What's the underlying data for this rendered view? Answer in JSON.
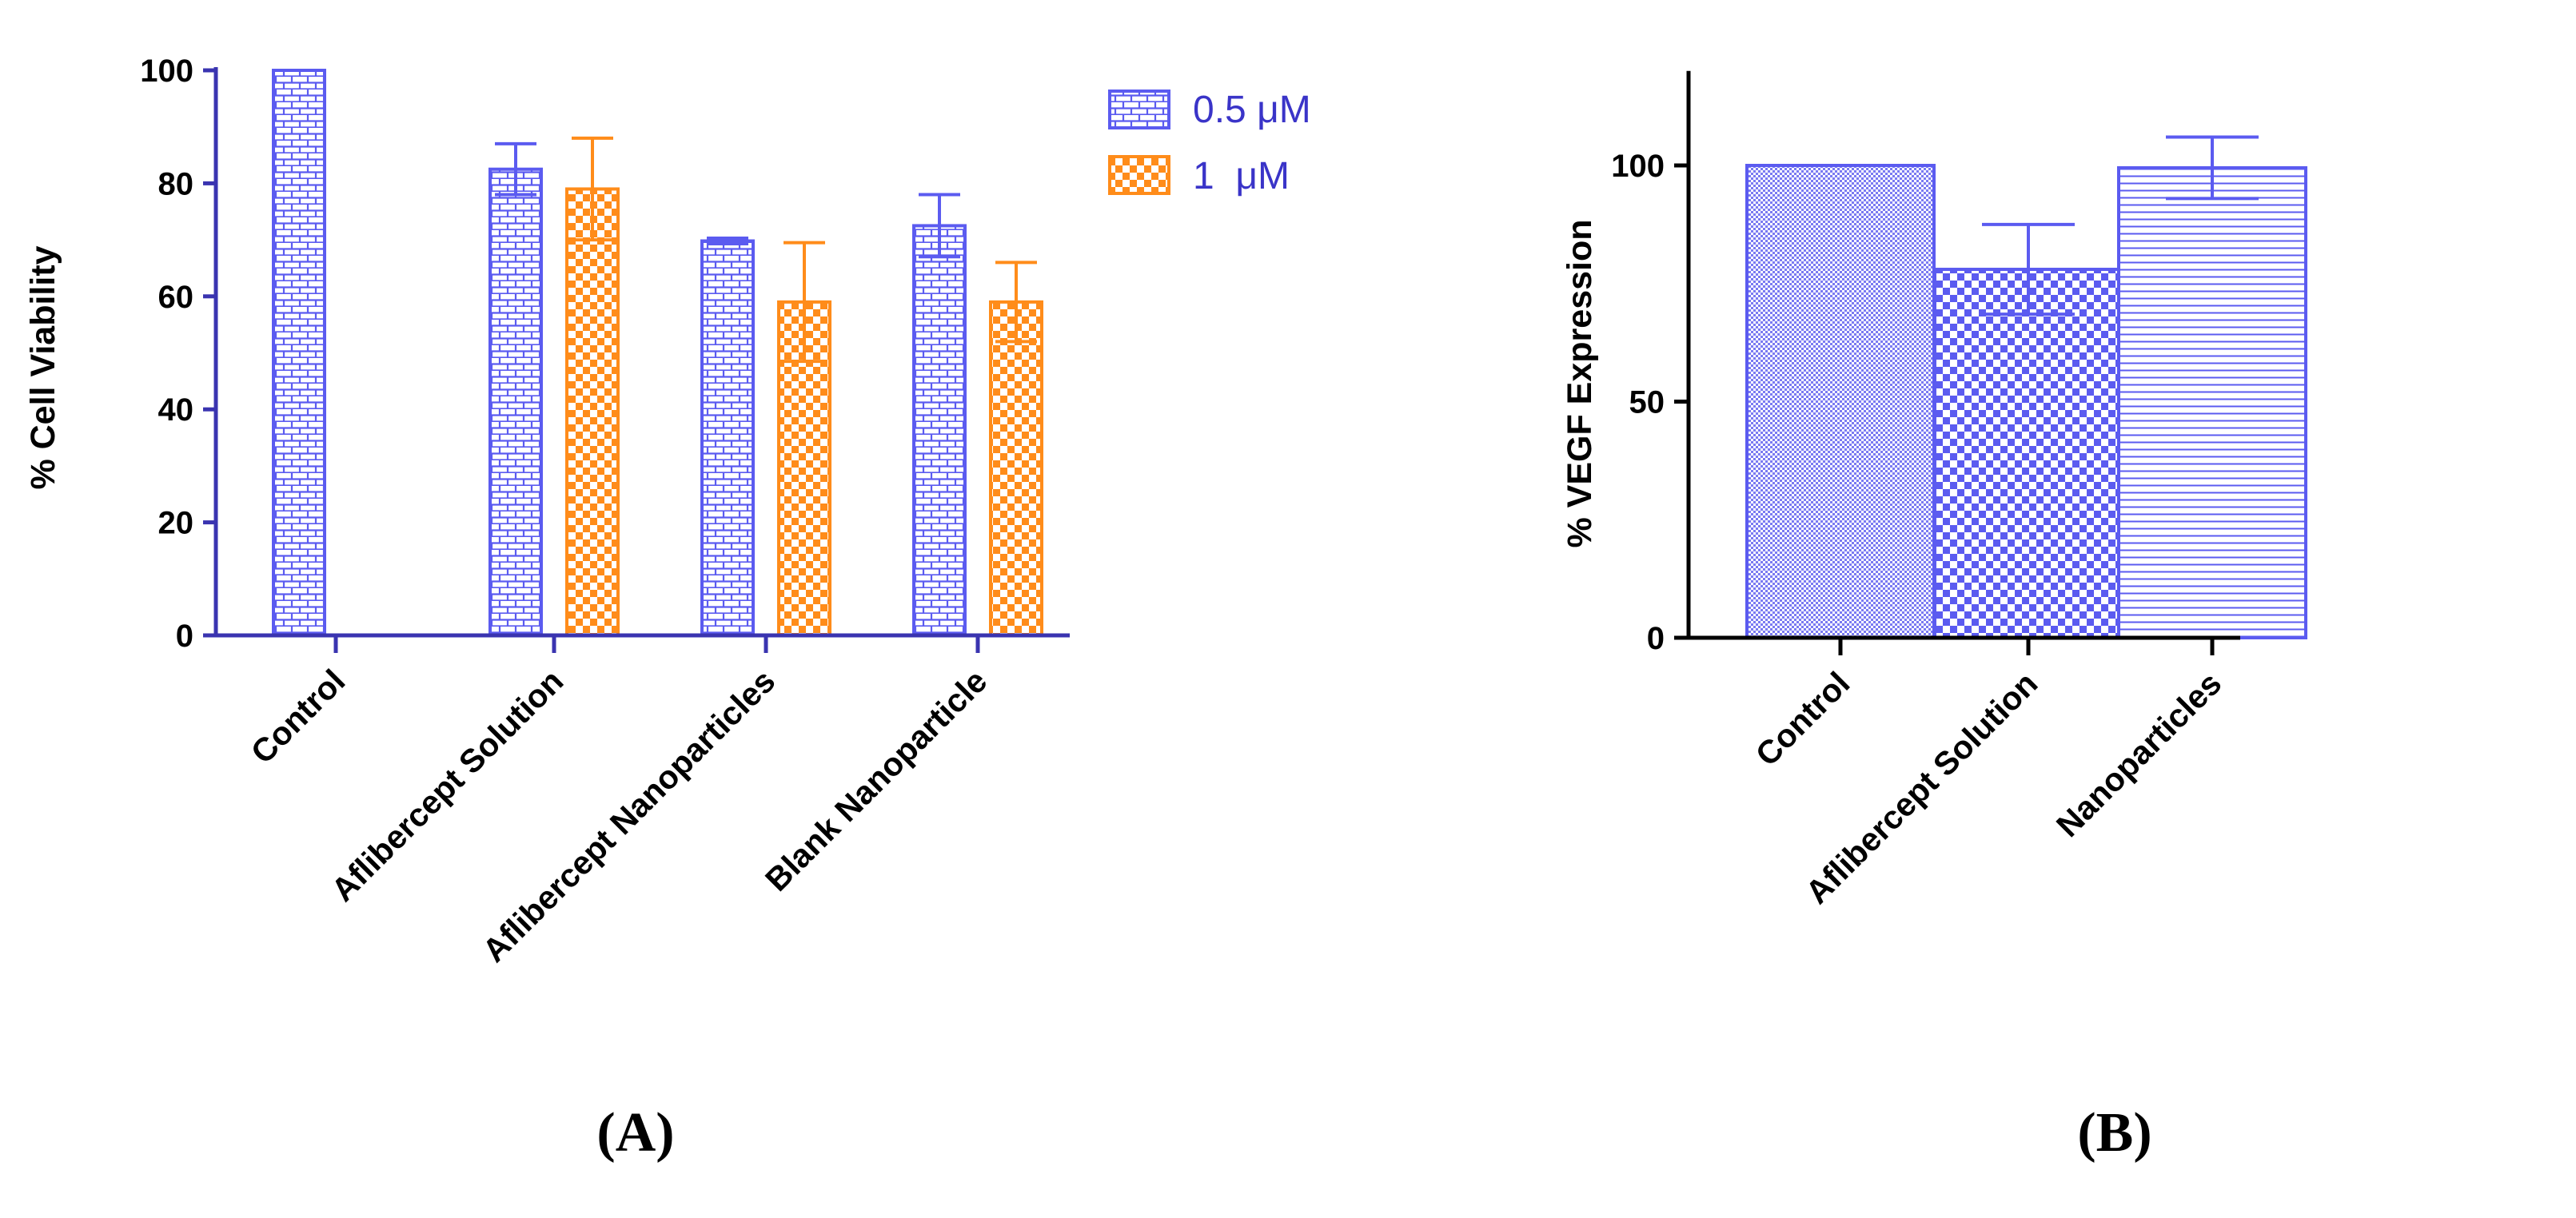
{
  "chart_data": [
    {
      "panel": "(A)",
      "type": "bar",
      "title": "",
      "xlabel": "",
      "ylabel": "% Cell Viability",
      "ylim": [
        0,
        100
      ],
      "yticks": [
        0,
        20,
        40,
        60,
        80,
        100
      ],
      "categories": [
        "Control",
        "Aflibercept Solution",
        "Aflibercept Nanoparticles",
        "Blank Nanoparticle"
      ],
      "series": [
        {
          "name": "0.5 μM",
          "color": "#5b5bf0",
          "pattern": "brick",
          "values": [
            100,
            82.5,
            69.8,
            72.5
          ],
          "errors": [
            0,
            4.5,
            0.5,
            5.5
          ]
        },
        {
          "name": "1  μM",
          "color": "#ff8c1a",
          "pattern": "checker",
          "values": [
            null,
            79,
            59,
            59
          ],
          "errors": [
            null,
            9,
            10.5,
            7
          ]
        }
      ],
      "legend": "top-right"
    },
    {
      "panel": "(B)",
      "type": "bar",
      "title": "",
      "xlabel": "",
      "ylabel": "% VEGF Expression",
      "ylim": [
        0,
        120
      ],
      "yticks": [
        0,
        50,
        100
      ],
      "categories": [
        "Control",
        "Aflibercept Solution",
        "Nanoparticles"
      ],
      "series": [
        {
          "name": "% VEGF Expression",
          "color": "#5b5bf0",
          "patterns": [
            "dots",
            "checker",
            "hlines"
          ],
          "values": [
            100,
            78,
            99.5
          ],
          "errors": [
            0,
            9.5,
            6.5
          ]
        }
      ]
    }
  ]
}
